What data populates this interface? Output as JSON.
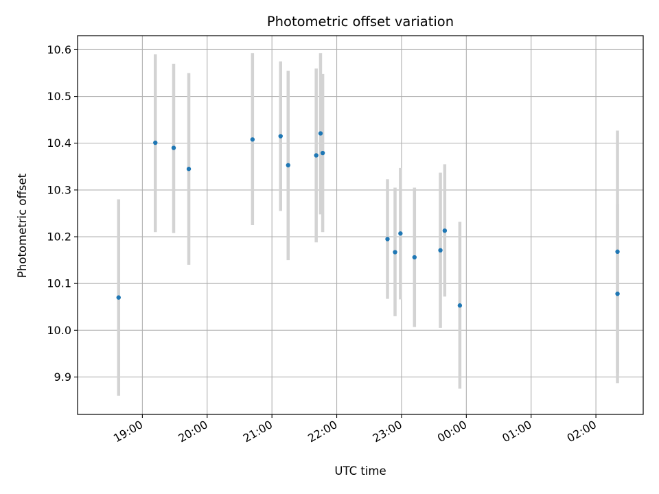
{
  "chart_data": {
    "type": "scatter",
    "title": "Photometric offset variation",
    "xlabel": "UTC time",
    "ylabel": "Photometric offset",
    "x_tick_labels": [
      "19:00",
      "20:00",
      "21:00",
      "22:00",
      "23:00",
      "00:00",
      "01:00",
      "02:00"
    ],
    "x_tick_hours": [
      19,
      20,
      21,
      22,
      23,
      24,
      25,
      26
    ],
    "xlim_hours": [
      18.0,
      26.73
    ],
    "y_ticks": [
      "9.9",
      "10.0",
      "10.1",
      "10.2",
      "10.3",
      "10.4",
      "10.5",
      "10.6"
    ],
    "ylim": [
      9.82,
      10.63
    ],
    "grid": true,
    "colors": {
      "points": "#1f77b4",
      "errorbars": "#d3d3d3",
      "grid": "#b0b0b0"
    },
    "points": [
      {
        "time": "18:38",
        "y": 10.07,
        "low": 9.86,
        "high": 10.28
      },
      {
        "time": "19:12",
        "y": 10.401,
        "low": 10.21,
        "high": 10.59
      },
      {
        "time": "19:29",
        "y": 10.39,
        "low": 10.208,
        "high": 10.57
      },
      {
        "time": "19:43",
        "y": 10.345,
        "low": 10.14,
        "high": 10.55
      },
      {
        "time": "20:42",
        "y": 10.408,
        "low": 10.225,
        "high": 10.593
      },
      {
        "time": "21:08",
        "y": 10.415,
        "low": 10.255,
        "high": 10.575
      },
      {
        "time": "21:15",
        "y": 10.353,
        "low": 10.15,
        "high": 10.555
      },
      {
        "time": "21:41",
        "y": 10.374,
        "low": 10.188,
        "high": 10.56
      },
      {
        "time": "21:45",
        "y": 10.421,
        "low": 10.248,
        "high": 10.593
      },
      {
        "time": "21:47",
        "y": 10.379,
        "low": 10.21,
        "high": 10.548
      },
      {
        "time": "22:47",
        "y": 10.195,
        "low": 10.067,
        "high": 10.323
      },
      {
        "time": "22:54",
        "y": 10.167,
        "low": 10.03,
        "high": 10.305
      },
      {
        "time": "22:59",
        "y": 10.207,
        "low": 10.066,
        "high": 10.347
      },
      {
        "time": "23:12",
        "y": 10.156,
        "low": 10.007,
        "high": 10.305
      },
      {
        "time": "23:36",
        "y": 10.171,
        "low": 10.005,
        "high": 10.337
      },
      {
        "time": "23:40",
        "y": 10.213,
        "low": 10.072,
        "high": 10.355
      },
      {
        "time": "23:54",
        "y": 10.053,
        "low": 9.875,
        "high": 10.232
      },
      {
        "time": "02:20",
        "y": 10.168,
        "low": 9.908,
        "high": 10.427
      },
      {
        "time": "02:20",
        "y": 10.078,
        "low": 9.887,
        "high": 10.27
      }
    ]
  }
}
